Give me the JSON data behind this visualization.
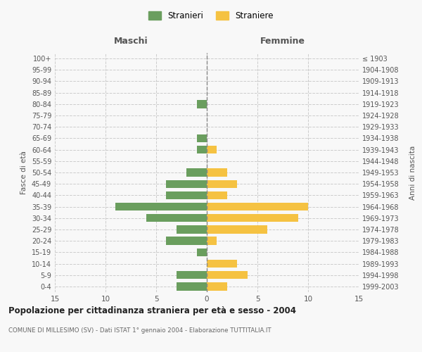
{
  "age_groups": [
    "0-4",
    "5-9",
    "10-14",
    "15-19",
    "20-24",
    "25-29",
    "30-34",
    "35-39",
    "40-44",
    "45-49",
    "50-54",
    "55-59",
    "60-64",
    "65-69",
    "70-74",
    "75-79",
    "80-84",
    "85-89",
    "90-94",
    "95-99",
    "100+"
  ],
  "birth_years": [
    "1999-2003",
    "1994-1998",
    "1989-1993",
    "1984-1988",
    "1979-1983",
    "1974-1978",
    "1969-1973",
    "1964-1968",
    "1959-1963",
    "1954-1958",
    "1949-1953",
    "1944-1948",
    "1939-1943",
    "1934-1938",
    "1929-1933",
    "1924-1928",
    "1919-1923",
    "1914-1918",
    "1909-1913",
    "1904-1908",
    "≤ 1903"
  ],
  "maschi": [
    3,
    3,
    0,
    1,
    4,
    3,
    6,
    9,
    4,
    4,
    2,
    0,
    1,
    1,
    0,
    0,
    1,
    0,
    0,
    0,
    0
  ],
  "femmine": [
    2,
    4,
    3,
    0,
    1,
    6,
    9,
    10,
    2,
    3,
    2,
    0,
    1,
    0,
    0,
    0,
    0,
    0,
    0,
    0,
    0
  ],
  "male_color": "#6a9e5e",
  "female_color": "#f5c242",
  "bg_color": "#f8f8f8",
  "grid_color": "#cccccc",
  "title": "Popolazione per cittadinanza straniera per età e sesso - 2004",
  "subtitle": "COMUNE DI MILLESIMO (SV) - Dati ISTAT 1° gennaio 2004 - Elaborazione TUTTITALIA.IT",
  "xlabel_left": "Maschi",
  "xlabel_right": "Femmine",
  "ylabel_left": "Fasce di età",
  "ylabel_right": "Anni di nascita",
  "legend_male": "Stranieri",
  "legend_female": "Straniere",
  "xlim": 15
}
